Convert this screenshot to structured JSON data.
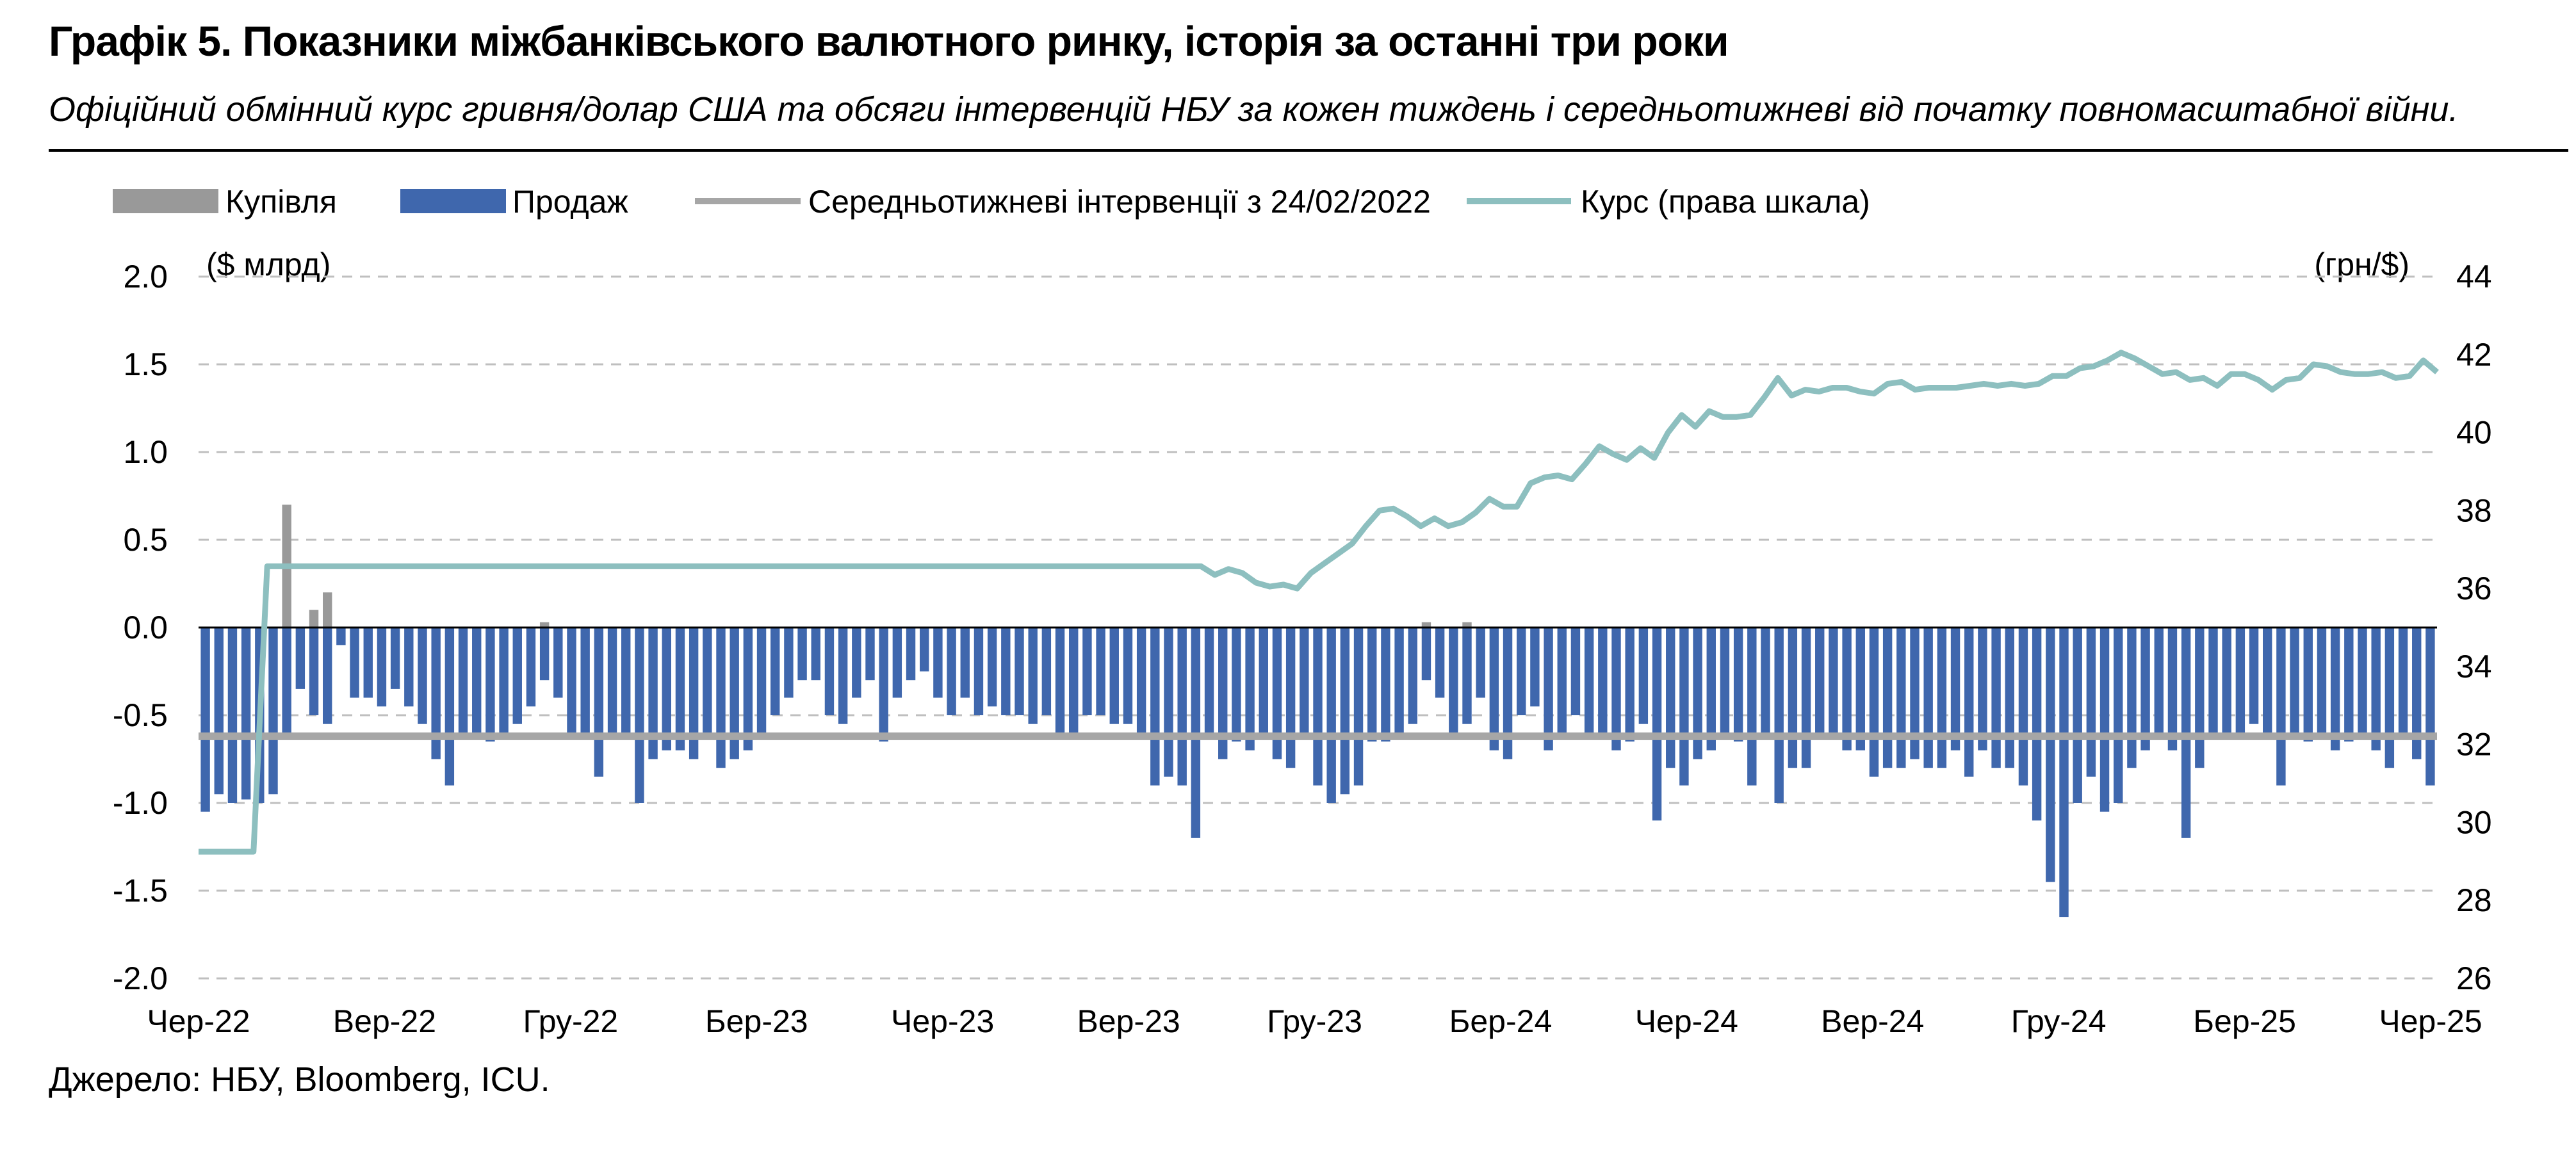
{
  "title": "Графік 5. Показники міжбанківського валютного ринку, історія за останні три роки",
  "subtitle": "Офіційний обмінний курс гривня/долар США та обсяги інтервенцій НБУ за кожен тиждень і середньотижневі від початку повномасштабної війни.",
  "source": "Джерело: НБУ, Bloomberg, ICU.",
  "colors": {
    "buy": "#999999",
    "sell": "#3f67ad",
    "average": "#a6a6a6",
    "rate": "#8dbfbf",
    "grid": "#bfbfbf"
  },
  "chart_data": {
    "type": "bar",
    "legend_position": "top",
    "left_unit": "($ млрд)",
    "right_unit": "(грн/$)",
    "left_ylim": [
      -2.0,
      2.0
    ],
    "left_ticks": [
      "2.0",
      "1.5",
      "1.0",
      "0.5",
      "0.0",
      "-0.5",
      "-1.0",
      "-1.5",
      "-2.0"
    ],
    "right_ylim": [
      26,
      44
    ],
    "right_ticks": [
      "44",
      "42",
      "40",
      "38",
      "36",
      "34",
      "32",
      "30",
      "28",
      "26"
    ],
    "x_labels": [
      "Чер-22",
      "Вер-22",
      "Гру-22",
      "Бер-23",
      "Чер-23",
      "Вер-23",
      "Гру-23",
      "Бер-24",
      "Чер-24",
      "Вер-24",
      "Гру-24",
      "Бер-25",
      "Чер-25"
    ],
    "legend": [
      "Купівля",
      "Продаж",
      "Середньотижневі інтервенції з 24/02/2022",
      "Курс (права шкала)"
    ],
    "series": [
      {
        "name": "Продаж",
        "kind": "bar",
        "values": [
          -1.05,
          -0.95,
          -1.0,
          -0.98,
          -1.0,
          -0.95,
          -0.6,
          -0.35,
          -0.5,
          -0.55,
          -0.1,
          -0.4,
          -0.4,
          -0.45,
          -0.35,
          -0.45,
          -0.55,
          -0.75,
          -0.9,
          -0.6,
          -0.6,
          -0.65,
          -0.6,
          -0.55,
          -0.45,
          -0.3,
          -0.4,
          -0.6,
          -0.6,
          -0.85,
          -0.6,
          -0.6,
          -1.0,
          -0.75,
          -0.7,
          -0.7,
          -0.75,
          -0.6,
          -0.8,
          -0.75,
          -0.7,
          -0.6,
          -0.5,
          -0.4,
          -0.3,
          -0.3,
          -0.5,
          -0.55,
          -0.4,
          -0.3,
          -0.65,
          -0.4,
          -0.3,
          -0.25,
          -0.4,
          -0.5,
          -0.4,
          -0.5,
          -0.45,
          -0.5,
          -0.5,
          -0.55,
          -0.5,
          -0.6,
          -0.6,
          -0.5,
          -0.5,
          -0.55,
          -0.55,
          -0.6,
          -0.9,
          -0.85,
          -0.9,
          -1.2,
          -0.6,
          -0.75,
          -0.65,
          -0.7,
          -0.6,
          -0.75,
          -0.8,
          -0.6,
          -0.9,
          -1.0,
          -0.95,
          -0.9,
          -0.65,
          -0.65,
          -0.6,
          -0.55,
          -0.3,
          -0.4,
          -0.6,
          -0.55,
          -0.4,
          -0.7,
          -0.75,
          -0.5,
          -0.45,
          -0.7,
          -0.6,
          -0.5,
          -0.6,
          -0.6,
          -0.7,
          -0.65,
          -0.55,
          -1.1,
          -0.8,
          -0.9,
          -0.75,
          -0.7,
          -0.6,
          -0.65,
          -0.9,
          -0.6,
          -1.0,
          -0.8,
          -0.8,
          -0.6,
          -0.6,
          -0.7,
          -0.7,
          -0.85,
          -0.8,
          -0.8,
          -0.75,
          -0.8,
          -0.8,
          -0.7,
          -0.85,
          -0.7,
          -0.8,
          -0.8,
          -0.9,
          -1.1,
          -1.45,
          -1.65,
          -1.0,
          -0.85,
          -1.05,
          -1.0,
          -0.8,
          -0.7,
          -0.6,
          -0.7,
          -1.2,
          -0.8,
          -0.6,
          -0.6,
          -0.6,
          -0.55,
          -0.6,
          -0.9,
          -0.6,
          -0.65,
          -0.6,
          -0.7,
          -0.65,
          -0.6,
          -0.7,
          -0.8,
          -0.6,
          -0.75,
          -0.9
        ],
        "label": "sell"
      },
      {
        "name": "Купівля",
        "kind": "bar",
        "values": [
          0.0,
          0.0,
          0.0,
          0.0,
          0.0,
          0.0,
          0.7,
          0.0,
          0.1,
          0.2,
          0.0,
          0.0,
          0.0,
          0.0,
          0.0,
          0.0,
          0.0,
          0.0,
          0.0,
          0.0,
          0.0,
          0.0,
          0.0,
          0.0,
          0.0,
          0.03,
          0.0,
          0.0,
          0.0,
          0.0,
          0.0,
          0.0,
          0.0,
          0.0,
          0.0,
          0.0,
          0.0,
          0.0,
          0.0,
          0.0,
          0.0,
          0.0,
          0.0,
          0.0,
          0.0,
          0.0,
          0.0,
          0.0,
          0.0,
          0.0,
          0.0,
          0.0,
          0.0,
          0.0,
          0.0,
          0.0,
          0.0,
          0.0,
          0.0,
          0.0,
          0.0,
          0.0,
          0.0,
          0.0,
          0.0,
          0.0,
          0.0,
          0.0,
          0.0,
          0.0,
          0.0,
          0.0,
          0.0,
          0.0,
          0.0,
          0.0,
          0.0,
          0.0,
          0.0,
          0.0,
          0.0,
          0.0,
          0.0,
          0.0,
          0.0,
          0.0,
          0.0,
          0.0,
          0.0,
          0.0,
          0.03,
          0.0,
          0.0,
          0.03,
          0.0,
          0.0,
          0.0,
          0.0,
          0.0,
          0.0,
          0.0,
          0.0,
          0.0,
          0.0,
          0.0,
          0.0,
          0.0,
          0.0,
          0.0,
          0.0,
          0.0,
          0.0,
          0.0,
          0.0,
          0.0,
          0.0,
          0.0,
          0.0,
          0.0,
          0.0,
          0.0,
          0.0,
          0.0,
          0.0,
          0.0,
          0.0,
          0.0,
          0.0,
          0.0,
          0.0,
          0.0,
          0.0,
          0.0,
          0.0,
          0.0,
          0.0,
          0.0,
          0.0,
          0.0,
          0.0,
          0.0,
          0.0,
          0.0,
          0.0,
          0.0,
          0.0,
          0.0,
          0.0,
          0.0,
          0.0,
          0.0,
          0.0,
          0.0,
          0.0,
          0.0,
          0.0,
          0.0,
          0.0,
          0.0,
          0.0,
          0.0,
          0.0,
          0.0,
          0.0,
          0.0,
          0.0,
          0.0,
          0.0,
          0.0,
          0.0
        ],
        "label": "buy"
      },
      {
        "name": "Середньотижневі інтервенції з 24/02/2022",
        "kind": "hline",
        "value": -0.62
      },
      {
        "name": "Курс (права шкала)",
        "kind": "line",
        "axis": "right",
        "values": [
          29.25,
          29.25,
          29.25,
          29.25,
          29.25,
          36.57,
          36.57,
          36.57,
          36.57,
          36.57,
          36.57,
          36.57,
          36.57,
          36.57,
          36.57,
          36.57,
          36.57,
          36.57,
          36.57,
          36.57,
          36.57,
          36.57,
          36.57,
          36.57,
          36.57,
          36.57,
          36.57,
          36.57,
          36.57,
          36.57,
          36.57,
          36.57,
          36.57,
          36.57,
          36.57,
          36.57,
          36.57,
          36.57,
          36.57,
          36.57,
          36.57,
          36.57,
          36.57,
          36.57,
          36.57,
          36.57,
          36.57,
          36.57,
          36.57,
          36.57,
          36.57,
          36.57,
          36.57,
          36.57,
          36.57,
          36.57,
          36.57,
          36.57,
          36.57,
          36.57,
          36.57,
          36.57,
          36.57,
          36.57,
          36.57,
          36.57,
          36.57,
          36.57,
          36.57,
          36.57,
          36.57,
          36.57,
          36.57,
          36.57,
          36.35,
          36.5,
          36.4,
          36.15,
          36.05,
          36.1,
          36.0,
          36.4,
          36.65,
          36.9,
          37.15,
          37.6,
          38.0,
          38.05,
          37.85,
          37.6,
          37.8,
          37.6,
          37.7,
          37.95,
          38.3,
          38.1,
          38.1,
          38.7,
          38.85,
          38.9,
          38.8,
          39.2,
          39.65,
          39.45,
          39.3,
          39.6,
          39.35,
          40.0,
          40.45,
          40.15,
          40.55,
          40.4,
          40.4,
          40.45,
          40.9,
          41.4,
          40.95,
          41.1,
          41.05,
          41.15,
          41.15,
          41.05,
          41.0,
          41.25,
          41.3,
          41.1,
          41.15,
          41.15,
          41.15,
          41.2,
          41.25,
          41.2,
          41.25,
          41.2,
          41.25,
          41.45,
          41.45,
          41.65,
          41.7,
          41.85,
          42.05,
          41.9,
          41.7,
          41.5,
          41.55,
          41.35,
          41.4,
          41.2,
          41.5,
          41.5,
          41.35,
          41.1,
          41.35,
          41.4,
          41.75,
          41.7,
          41.55,
          41.5,
          41.5,
          41.55,
          41.4,
          41.45,
          41.85,
          41.55
        ]
      }
    ]
  }
}
